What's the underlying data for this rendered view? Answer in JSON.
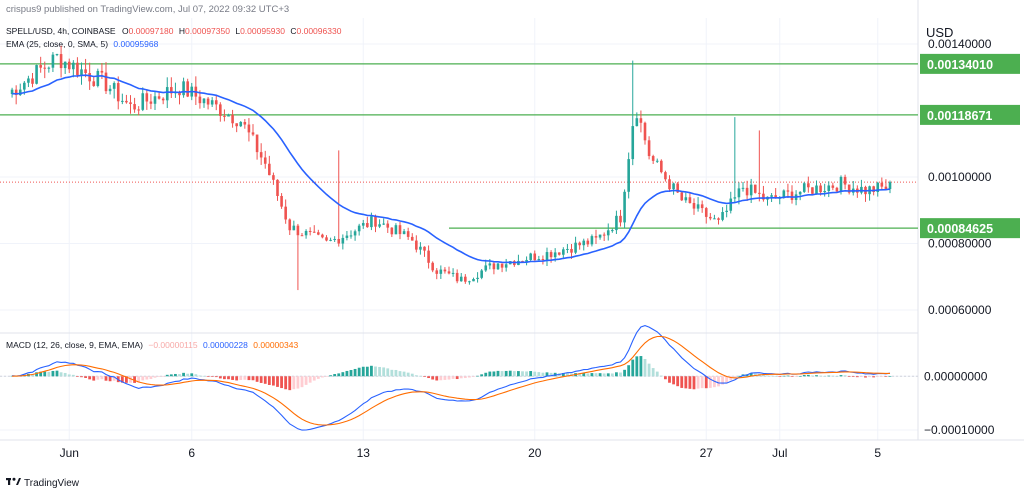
{
  "header": {
    "published": "crispus9 published on TradingView.com, Jul 07, 2022 09:32 UTC+3",
    "currency": "USD"
  },
  "legend": {
    "symbol": "SPELL/USD, 4h, COINBASE",
    "ohlc": [
      {
        "key": "O",
        "value": "0.00097180"
      },
      {
        "key": "H",
        "value": "0.00097350"
      },
      {
        "key": "L",
        "value": "0.00095930"
      },
      {
        "key": "C",
        "value": "0.00096330"
      }
    ],
    "ema_label": "EMA (25, close, 0, SMA, 5)",
    "ema_value": "0.00095968",
    "macd_label": "MACD (12, 26, close, 9, EMA, EMA)",
    "macd_values": [
      "−0.00000115",
      "0.00000228",
      "0.00000343"
    ]
  },
  "footer": {
    "brand": "TradingView"
  },
  "colors": {
    "up": "#26a69a",
    "down": "#ef5350",
    "ema": "#2962ff",
    "signal": "#ff6d00",
    "level": "#4caf50",
    "grid": "#f0f3fa"
  },
  "chart_data": [
    {
      "type": "candlestick",
      "title": "SPELL/USD, 4h, COINBASE",
      "ylabel": "USD",
      "ylim": [
        0.00054,
        0.00146
      ],
      "x_ticks": [
        "Jun",
        "6",
        "13",
        "20",
        "27",
        "Jul",
        "5"
      ],
      "y_ticks": [
        "0.00140000",
        "0.00100000",
        "0.00080000",
        "0.00060000"
      ],
      "levels": [
        "0.00134010",
        "0.00118671",
        "0.00084625"
      ],
      "keypoints": [
        {
          "day": 0,
          "price": 0.00125
        },
        {
          "day": 2,
          "price": 0.00136
        },
        {
          "day": 4,
          "price": 0.00128
        },
        {
          "day": 5,
          "price": 0.00121
        },
        {
          "day": 7,
          "price": 0.00127
        },
        {
          "day": 8.5,
          "price": 0.00121
        },
        {
          "day": 9.5,
          "price": 0.00117
        },
        {
          "day": 10.5,
          "price": 0.00104
        },
        {
          "day": 11.5,
          "price": 0.00085
        },
        {
          "day": 13,
          "price": 0.0008
        },
        {
          "day": 15,
          "price": 0.00087
        },
        {
          "day": 16.5,
          "price": 0.00081
        },
        {
          "day": 17.5,
          "price": 0.00072
        },
        {
          "day": 18.5,
          "price": 0.00069
        },
        {
          "day": 20,
          "price": 0.00074
        },
        {
          "day": 22,
          "price": 0.00077
        },
        {
          "day": 24,
          "price": 0.00081
        },
        {
          "day": 25,
          "price": 0.00088
        },
        {
          "day": 25.6,
          "price": 0.00122
        },
        {
          "day": 26.2,
          "price": 0.00106
        },
        {
          "day": 27.5,
          "price": 0.00093
        },
        {
          "day": 29,
          "price": 0.00086
        },
        {
          "day": 30,
          "price": 0.00097
        },
        {
          "day": 31,
          "price": 0.00093
        },
        {
          "day": 32.5,
          "price": 0.00096
        },
        {
          "day": 34,
          "price": 0.00098
        },
        {
          "day": 35,
          "price": 0.00096
        },
        {
          "day": 36,
          "price": 0.00097
        }
      ]
    },
    {
      "type": "macd",
      "title": "MACD (12, 26, close, 9, EMA, EMA)",
      "ylim": [
        -0.000115,
        7.5e-05
      ],
      "y_ticks": [
        "0.00000000",
        "−0.00010000"
      ]
    }
  ]
}
